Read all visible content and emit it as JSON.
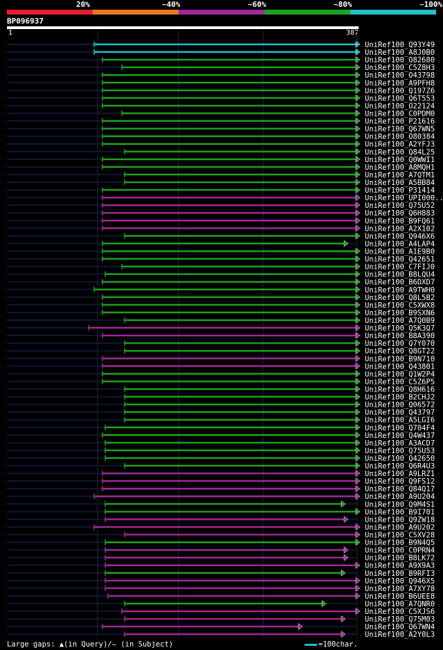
{
  "query_id": "BP096937",
  "ruler": {
    "start": "1",
    "end": "387"
  },
  "identity_scale": [
    {
      "label": "20%",
      "color": "#e8202c"
    },
    {
      "label": "~40%",
      "color": "#e87820"
    },
    {
      "label": "~60%",
      "color": "#a02898"
    },
    {
      "label": "~80%",
      "color": "#20a020"
    },
    {
      "label": "~100%",
      "color": "#20c0c8"
    }
  ],
  "colors": {
    "cyan": "#20c0c8",
    "green": "#20a020",
    "purple": "#a02898",
    "track": "#101838",
    "grid": "#202838"
  },
  "hits": [
    {
      "id": "UniRef100_Q93Y49",
      "color": "cyan",
      "start": 136,
      "end": 519
    },
    {
      "id": "UniRef100_A8J0B0",
      "color": "cyan",
      "start": 136,
      "end": 519
    },
    {
      "id": "UniRef100_O82680",
      "color": "green",
      "start": 148,
      "end": 519
    },
    {
      "id": "UniRef100_C5Z8H3",
      "color": "green",
      "start": 176,
      "end": 519
    },
    {
      "id": "UniRef100_O43798",
      "color": "green",
      "start": 148,
      "end": 519
    },
    {
      "id": "UniRef100_A9PFH8",
      "color": "green",
      "start": 148,
      "end": 519
    },
    {
      "id": "UniRef100_Q197Z6",
      "color": "green",
      "start": 148,
      "end": 519
    },
    {
      "id": "UniRef100_Q6T553",
      "color": "green",
      "start": 148,
      "end": 519
    },
    {
      "id": "UniRef100_O22124",
      "color": "green",
      "start": 148,
      "end": 519
    },
    {
      "id": "UniRef100_C0PDM0",
      "color": "green",
      "start": 176,
      "end": 519
    },
    {
      "id": "UniRef100_P21616",
      "color": "green",
      "start": 148,
      "end": 519
    },
    {
      "id": "UniRef100_Q67WN5",
      "color": "green",
      "start": 148,
      "end": 519
    },
    {
      "id": "UniRef100_O80384",
      "color": "green",
      "start": 148,
      "end": 519
    },
    {
      "id": "UniRef100_A2YFJ3",
      "color": "green",
      "start": 148,
      "end": 519
    },
    {
      "id": "UniRef100_Q84L25",
      "color": "green",
      "start": 180,
      "end": 519
    },
    {
      "id": "UniRef100_Q0WWI1",
      "color": "green",
      "start": 148,
      "end": 519
    },
    {
      "id": "UniRef100_A8MQH1",
      "color": "green",
      "start": 148,
      "end": 519
    },
    {
      "id": "UniRef100_A7QTM1",
      "color": "green",
      "start": 180,
      "end": 519
    },
    {
      "id": "UniRef100_A5BB84",
      "color": "green",
      "start": 180,
      "end": 519
    },
    {
      "id": "UniRef100_P31414",
      "color": "green",
      "start": 148,
      "end": 519
    },
    {
      "id": "UniRef100_UPI000..",
      "color": "purple",
      "start": 148,
      "end": 519
    },
    {
      "id": "UniRef100_Q75U52",
      "color": "purple",
      "start": 148,
      "end": 519
    },
    {
      "id": "UniRef100_Q6H883",
      "color": "purple",
      "start": 148,
      "end": 519
    },
    {
      "id": "UniRef100_B9FQ61",
      "color": "purple",
      "start": 148,
      "end": 519
    },
    {
      "id": "UniRef100_A2X102",
      "color": "purple",
      "start": 148,
      "end": 519
    },
    {
      "id": "UniRef100_Q946X6",
      "color": "green",
      "start": 180,
      "end": 519
    },
    {
      "id": "UniRef100_A4LAP4",
      "color": "green",
      "start": 148,
      "end": 502
    },
    {
      "id": "UniRef100_A1E9B0",
      "color": "green",
      "start": 148,
      "end": 519
    },
    {
      "id": "UniRef100_Q42651",
      "color": "green",
      "start": 148,
      "end": 519
    },
    {
      "id": "UniRef100_C7FIJ0",
      "color": "green",
      "start": 176,
      "end": 519
    },
    {
      "id": "UniRef100_B8LQU4",
      "color": "green",
      "start": 152,
      "end": 519
    },
    {
      "id": "UniRef100_B6DXD7",
      "color": "green",
      "start": 148,
      "end": 519
    },
    {
      "id": "UniRef100_A9TWH0",
      "color": "green",
      "start": 136,
      "end": 519
    },
    {
      "id": "UniRef100_Q8L5B2",
      "color": "green",
      "start": 148,
      "end": 519
    },
    {
      "id": "UniRef100_C5XWX8",
      "color": "green",
      "start": 148,
      "end": 519
    },
    {
      "id": "UniRef100_B9SXN6",
      "color": "green",
      "start": 148,
      "end": 519
    },
    {
      "id": "UniRef100_A7Q0B9",
      "color": "green",
      "start": 180,
      "end": 519
    },
    {
      "id": "UniRef100_Q5K3Q7",
      "color": "purple",
      "start": 128,
      "end": 519
    },
    {
      "id": "UniRef100_B8A390",
      "color": "purple",
      "start": 148,
      "end": 519
    },
    {
      "id": "UniRef100_Q7Y070",
      "color": "green",
      "start": 180,
      "end": 519
    },
    {
      "id": "UniRef100_Q8GT22",
      "color": "green",
      "start": 180,
      "end": 519
    },
    {
      "id": "UniRef100_B9N710",
      "color": "purple",
      "start": 148,
      "end": 519
    },
    {
      "id": "UniRef100_Q43801",
      "color": "purple",
      "start": 148,
      "end": 519
    },
    {
      "id": "UniRef100_Q1W2P4",
      "color": "green",
      "start": 148,
      "end": 519
    },
    {
      "id": "UniRef100_C5Z6P5",
      "color": "green",
      "start": 148,
      "end": 519
    },
    {
      "id": "UniRef100_Q8H616",
      "color": "green",
      "start": 180,
      "end": 519
    },
    {
      "id": "UniRef100_B2CHJ2",
      "color": "green",
      "start": 180,
      "end": 519
    },
    {
      "id": "UniRef100_Q06572",
      "color": "green",
      "start": 180,
      "end": 519
    },
    {
      "id": "UniRef100_Q43797",
      "color": "green",
      "start": 180,
      "end": 519
    },
    {
      "id": "UniRef100_A5LGI6",
      "color": "green",
      "start": 180,
      "end": 519
    },
    {
      "id": "UniRef100_Q704F4",
      "color": "green",
      "start": 152,
      "end": 519
    },
    {
      "id": "UniRef100_Q4W437",
      "color": "green",
      "start": 148,
      "end": 519
    },
    {
      "id": "UniRef100_A3ACD7",
      "color": "green",
      "start": 152,
      "end": 519
    },
    {
      "id": "UniRef100_Q75U53",
      "color": "green",
      "start": 152,
      "end": 519
    },
    {
      "id": "UniRef100_Q42650",
      "color": "green",
      "start": 152,
      "end": 519
    },
    {
      "id": "UniRef100_Q6R4U3",
      "color": "green",
      "start": 180,
      "end": 519
    },
    {
      "id": "UniRef100_A9LRZ1",
      "color": "purple",
      "start": 148,
      "end": 519
    },
    {
      "id": "UniRef100_Q9FS12",
      "color": "purple",
      "start": 148,
      "end": 519
    },
    {
      "id": "UniRef100_Q84Q17",
      "color": "purple",
      "start": 148,
      "end": 519
    },
    {
      "id": "UniRef100_A9U204",
      "color": "purple",
      "start": 136,
      "end": 519
    },
    {
      "id": "UniRef100_Q9M4S1",
      "color": "green",
      "start": 152,
      "end": 498
    },
    {
      "id": "UniRef100_B9I701",
      "color": "green",
      "start": 152,
      "end": 519
    },
    {
      "id": "UniRef100_Q9ZW18",
      "color": "purple",
      "start": 152,
      "end": 502
    },
    {
      "id": "UniRef100_A9U202",
      "color": "purple",
      "start": 136,
      "end": 519
    },
    {
      "id": "UniRef100_C5XV28",
      "color": "purple",
      "start": 180,
      "end": 519
    },
    {
      "id": "UniRef100_B9N4Q5",
      "color": "green",
      "start": 152,
      "end": 519
    },
    {
      "id": "UniRef100_C0PRN4",
      "color": "purple",
      "start": 152,
      "end": 502
    },
    {
      "id": "UniRef100_B8LK72",
      "color": "purple",
      "start": 152,
      "end": 502
    },
    {
      "id": "UniRef100_A9X9A3",
      "color": "purple",
      "start": 152,
      "end": 519
    },
    {
      "id": "UniRef100_B9RFI3",
      "color": "green",
      "start": 152,
      "end": 498
    },
    {
      "id": "UniRef100_Q946X5",
      "color": "purple",
      "start": 152,
      "end": 519
    },
    {
      "id": "UniRef100_A7XY78",
      "color": "purple",
      "start": 152,
      "end": 519
    },
    {
      "id": "UniRef100_B6UEE8",
      "color": "purple",
      "start": 156,
      "end": 519
    },
    {
      "id": "UniRef100_A7QNR0",
      "color": "green",
      "start": 180,
      "end": 470
    },
    {
      "id": "UniRef100_C5XJS6",
      "color": "purple",
      "start": 176,
      "end": 519
    },
    {
      "id": "UniRef100_Q75M03",
      "color": "purple",
      "start": 180,
      "end": 498
    },
    {
      "id": "UniRef100_Q67WN4",
      "color": "purple",
      "start": 148,
      "end": 436
    },
    {
      "id": "UniRef100_A2Y0L3",
      "color": "purple",
      "start": 180,
      "end": 498
    }
  ],
  "footer": {
    "legend_text": "Large gaps: ▲(in Query)/— (in Subject)",
    "scale_text": "=100char."
  }
}
